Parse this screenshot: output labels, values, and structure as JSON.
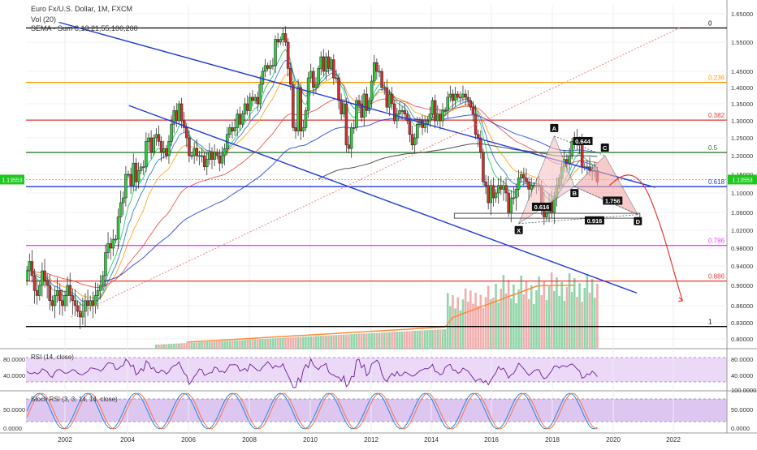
{
  "chart_data": {
    "type": "candlestick",
    "title": "Euro Fx/U.S. Dollar, 1M, FXCM",
    "volume_label": "Vol (20)",
    "indicator_label": "SEMA - Sum 8,13,21,55,100,200",
    "price_badge": "1.13553",
    "y_ticks": [
      "1.65000",
      "1.55000",
      "1.45000",
      "1.40000",
      "1.35000",
      "1.30000",
      "1.25000",
      "1.20000",
      "1.15000",
      "1.10000",
      "1.06000",
      "1.02000",
      "0.98000",
      "0.94000",
      "0.90000",
      "0.86000",
      "0.83000",
      "0.80000"
    ],
    "x_ticks": [
      "2002",
      "2004",
      "2006",
      "2008",
      "2010",
      "2012",
      "2014",
      "2016",
      "2018",
      "2020",
      "2022"
    ],
    "fib_levels": [
      {
        "label": "0",
        "value": 1.6,
        "color": "#000000"
      },
      {
        "label": "0.236",
        "value": 1.416,
        "color": "#ff9800"
      },
      {
        "label": "0.382",
        "value": 1.302,
        "color": "#e53935"
      },
      {
        "label": "0.5",
        "value": 1.209,
        "color": "#2e7d32"
      },
      {
        "label": "0.618",
        "value": 1.117,
        "color": "#1e3ad8"
      },
      {
        "label": "0.786",
        "value": 0.986,
        "color": "#e040fb"
      },
      {
        "label": "0.886",
        "value": 0.909,
        "color": "#e53935"
      },
      {
        "label": "1",
        "value": 0.823,
        "color": "#000000"
      }
    ],
    "pattern_points": [
      {
        "label": "X",
        "date": "2016-12",
        "price": 1.035
      },
      {
        "label": "A",
        "date": "2018-02",
        "price": 1.255
      },
      {
        "label": "B",
        "date": "2018-10",
        "price": 1.117
      },
      {
        "label": "C",
        "date": "2019-10",
        "price": 1.2
      },
      {
        "label": "D",
        "date": "2020-11",
        "price": 1.055
      }
    ],
    "pattern_ratios": [
      "0.616",
      "0.644",
      "1.756",
      "0.916"
    ],
    "candles_close": [
      0.93,
      0.95,
      0.92,
      0.89,
      0.88,
      0.9,
      0.93,
      0.91,
      0.9,
      0.87,
      0.86,
      0.88,
      0.89,
      0.87,
      0.86,
      0.88,
      0.9,
      0.88,
      0.87,
      0.86,
      0.85,
      0.84,
      0.85,
      0.87,
      0.86,
      0.87,
      0.86,
      0.88,
      0.89,
      0.9,
      0.92,
      0.97,
      0.99,
      0.98,
      1.0,
      1.0,
      1.05,
      1.08,
      1.09,
      1.15,
      1.15,
      1.12,
      1.18,
      1.13,
      1.16,
      1.17,
      1.17,
      1.24,
      1.25,
      1.21,
      1.25,
      1.26,
      1.24,
      1.21,
      1.22,
      1.2,
      1.24,
      1.29,
      1.33,
      1.3,
      1.35,
      1.3,
      1.28,
      1.25,
      1.2,
      1.2,
      1.22,
      1.2,
      1.2,
      1.2,
      1.17,
      1.19,
      1.21,
      1.19,
      1.21,
      1.2,
      1.18,
      1.2,
      1.22,
      1.26,
      1.28,
      1.27,
      1.28,
      1.32,
      1.29,
      1.32,
      1.35,
      1.33,
      1.37,
      1.36,
      1.37,
      1.35,
      1.41,
      1.45,
      1.47,
      1.46,
      1.47,
      1.47,
      1.56,
      1.55,
      1.56,
      1.58,
      1.55,
      1.46,
      1.41,
      1.28,
      1.27,
      1.4,
      1.27,
      1.28,
      1.33,
      1.43,
      1.45,
      1.4,
      1.41,
      1.46,
      1.5,
      1.45,
      1.5,
      1.46,
      1.49,
      1.43,
      1.43,
      1.36,
      1.32,
      1.35,
      1.23,
      1.22,
      1.28,
      1.28,
      1.36,
      1.35,
      1.31,
      1.38,
      1.33,
      1.36,
      1.42,
      1.48,
      1.45,
      1.45,
      1.4,
      1.4,
      1.34,
      1.38,
      1.35,
      1.3,
      1.32,
      1.33,
      1.33,
      1.32,
      1.3,
      1.26,
      1.23,
      1.25,
      1.29,
      1.3,
      1.28,
      1.29,
      1.3,
      1.32,
      1.36,
      1.3,
      1.32,
      1.3,
      1.33,
      1.33,
      1.37,
      1.38,
      1.36,
      1.38,
      1.37,
      1.37,
      1.38,
      1.37,
      1.36,
      1.34,
      1.32,
      1.26,
      1.25,
      1.21,
      1.13,
      1.12,
      1.08,
      1.12,
      1.09,
      1.1,
      1.12,
      1.11,
      1.12,
      1.1,
      1.06,
      1.09,
      1.09,
      1.11,
      1.14,
      1.15,
      1.14,
      1.13,
      1.11,
      1.12,
      1.12,
      1.12,
      1.12,
      1.08,
      1.05,
      1.06,
      1.08,
      1.06,
      1.09,
      1.12,
      1.14,
      1.17,
      1.19,
      1.18,
      1.2,
      1.24,
      1.25,
      1.23,
      1.24,
      1.17,
      1.17,
      1.17,
      1.16,
      1.16,
      1.16,
      1.13
    ]
  }
}
